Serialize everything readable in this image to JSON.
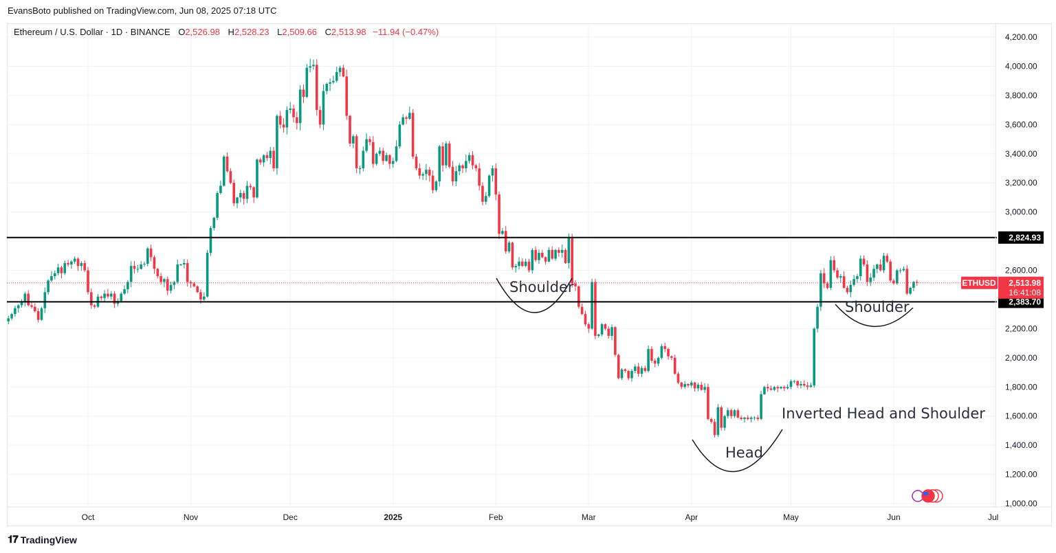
{
  "publisher_line": "EvansBoto published on TradingView.com, Jun 08, 2025 07:18 UTC",
  "legend": {
    "symbol": "Ethereum / U.S. Dollar · 1D · BINANCE",
    "o_label": "O",
    "o": "2,526.98",
    "h_label": "H",
    "h": "2,528.23",
    "l_label": "L",
    "l": "2,509.66",
    "c_label": "C",
    "c": "2,513.98",
    "change": "−11.94 (−0.47%)"
  },
  "footer": {
    "logo": "TradingView"
  },
  "colors": {
    "up": "#089981",
    "down": "#f23645",
    "level": "#000000",
    "price": "#f23645"
  },
  "chart_data": {
    "type": "candlestick",
    "title": "Ethereum / U.S. Dollar · 1D · BINANCE",
    "start_date": "2024-09-07",
    "first_open": 2250,
    "closes": [
      2270,
      2300,
      2340,
      2360,
      2380,
      2440,
      2360,
      2350,
      2320,
      2260,
      2340,
      2450,
      2530,
      2560,
      2580,
      2620,
      2580,
      2650,
      2640,
      2660,
      2680,
      2630,
      2650,
      2600,
      2450,
      2360,
      2350,
      2420,
      2410,
      2440,
      2420,
      2440,
      2370,
      2390,
      2440,
      2470,
      2520,
      2630,
      2610,
      2610,
      2640,
      2645,
      2750,
      2690,
      2610,
      2560,
      2520,
      2540,
      2460,
      2500,
      2520,
      2640,
      2640,
      2650,
      2520,
      2510,
      2490,
      2450,
      2400,
      2420,
      2720,
      2890,
      2960,
      3130,
      3180,
      3380,
      3280,
      3200,
      3060,
      3100,
      3130,
      3090,
      3180,
      3170,
      3100,
      3360,
      3340,
      3390,
      3370,
      3420,
      3300,
      3660,
      3600,
      3580,
      3700,
      3710,
      3650,
      3610,
      3840,
      3790,
      3990,
      4000,
      4010,
      3700,
      3600,
      3830,
      3880,
      3890,
      3900,
      3960,
      3990,
      3930,
      3660,
      3470,
      3520,
      3300,
      3300,
      3420,
      3500,
      3480,
      3330,
      3400,
      3420,
      3350,
      3390,
      3330,
      3350,
      3450,
      3600,
      3650,
      3640,
      3680,
      3380,
      3300,
      3250,
      3260,
      3290,
      3250,
      3150,
      3210,
      3450,
      3320,
      3470,
      3310,
      3210,
      3280,
      3320,
      3300,
      3350,
      3390,
      3320,
      3300,
      3180,
      3070,
      3110,
      3250,
      3300,
      3120,
      2850,
      2870,
      2730,
      2790,
      2620,
      2630,
      2660,
      2630,
      2660,
      2600,
      2740,
      2670,
      2720,
      2690,
      2660,
      2740,
      2680,
      2740,
      2720,
      2740,
      2650,
      2820,
      2510,
      2490,
      2350,
      2300,
      2230,
      2200,
      2520,
      2150,
      2160,
      2230,
      2200,
      2150,
      2210,
      2020,
      1860,
      1920,
      1910,
      1860,
      1910,
      1940,
      1890,
      1930,
      1910,
      2060,
      1980,
      1960,
      2000,
      2080,
      2060,
      2010,
      2000,
      1890,
      1830,
      1800,
      1820,
      1810,
      1830,
      1790,
      1815,
      1780,
      1800,
      1580,
      1560,
      1470,
      1660,
      1520,
      1600,
      1640,
      1600,
      1640,
      1590,
      1580,
      1590,
      1580,
      1590,
      1590,
      1580,
      1750,
      1800,
      1790,
      1780,
      1800,
      1790,
      1800,
      1790,
      1800,
      1840,
      1840,
      1810,
      1820,
      1810,
      1800,
      1810,
      2200,
      2350,
      2580,
      2510,
      2480,
      2670,
      2600,
      2550,
      2560,
      2480,
      2450,
      2500,
      2540,
      2560,
      2680,
      2640,
      2520,
      2550,
      2610,
      2640,
      2600,
      2700,
      2660,
      2530,
      2510,
      2600,
      2600,
      2610,
      2440,
      2480,
      2520,
      2513.98
    ],
    "y_ticks": [
      "4,200.00",
      "4,000.00",
      "3,800.00",
      "3,600.00",
      "3,400.00",
      "3,200.00",
      "3,000.00",
      "2,800.00",
      "2,600.00",
      "2,400.00",
      "2,200.00",
      "2,000.00",
      "1,800.00",
      "1,600.00",
      "1,400.00",
      "1,200.00",
      "1,000.00"
    ],
    "y_tick_values": [
      4200,
      4000,
      3800,
      3600,
      3400,
      3200,
      3000,
      2800,
      2600,
      2400,
      2200,
      2000,
      1800,
      1600,
      1400,
      1200,
      1000
    ],
    "ylim": [
      1000,
      4200
    ],
    "x_ticks": [
      {
        "label": "Oct",
        "day": 24,
        "bold": false
      },
      {
        "label": "Nov",
        "day": 55,
        "bold": false
      },
      {
        "label": "Dec",
        "day": 85,
        "bold": false
      },
      {
        "label": "2025",
        "day": 116,
        "bold": true
      },
      {
        "label": "Feb",
        "day": 147,
        "bold": false
      },
      {
        "label": "Mar",
        "day": 175,
        "bold": false
      },
      {
        "label": "Apr",
        "day": 206,
        "bold": false
      },
      {
        "label": "May",
        "day": 236,
        "bold": false
      },
      {
        "label": "Jun",
        "day": 267,
        "bold": false
      },
      {
        "label": "Jul",
        "day": 297,
        "bold": false
      }
    ],
    "levels": [
      {
        "value": 2824.93,
        "label": "2,824.93"
      },
      {
        "value": 2383.7,
        "label": "2,383.70"
      }
    ],
    "last_price": {
      "value": 2513.98,
      "symbol": "ETHUSD",
      "label": "2,513.98",
      "countdown": "16:41:08"
    },
    "annotations": {
      "left_shoulder": "Shoulder",
      "head": "Head",
      "right_shoulder": "Shoulder",
      "pattern": "Inverted Head and Shoulder"
    }
  }
}
